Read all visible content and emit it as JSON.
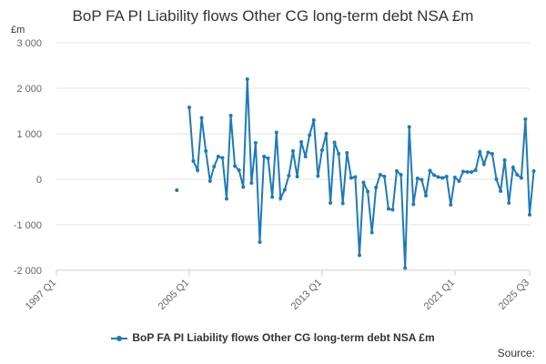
{
  "header": {
    "title": "BoP FA PI Liability flows Other CG long-term debt NSA £m"
  },
  "footer": {
    "source": "Source:"
  },
  "chart_data": {
    "type": "line",
    "title": "BoP FA PI Liability flows Other CG long-term debt NSA £m",
    "ylabel": "£m",
    "xlabel": "",
    "ylim": [
      -2000,
      3000
    ],
    "yticks": [
      3000,
      2000,
      1000,
      0,
      -1000,
      -2000
    ],
    "ytick_labels": [
      "3 000",
      "2 000",
      "1 000",
      "0",
      "-1 000",
      "-2 000"
    ],
    "xlim": [
      "1997 Q1",
      "2025 Q3"
    ],
    "xtick_labels": [
      "1997 Q1",
      "2005 Q1",
      "2013 Q1",
      "2021 Q1",
      "2025 Q3"
    ],
    "grid": "horizontal",
    "legend_position": "bottom",
    "color": "#1f7ab8",
    "series": [
      {
        "name": "BoP FA PI Liability flows Other CG long-term debt NSA £m",
        "start": "2004 Q2",
        "values": [
          -240,
          null,
          null,
          1580,
          400,
          200,
          1350,
          620,
          -40,
          280,
          500,
          470,
          -430,
          1400,
          290,
          200,
          -170,
          2200,
          -80,
          800,
          -1380,
          500,
          460,
          -390,
          1030,
          -420,
          -230,
          80,
          620,
          60,
          820,
          500,
          970,
          1300,
          70,
          640,
          1000,
          -520,
          810,
          560,
          -530,
          580,
          30,
          50,
          -1670,
          -70,
          -270,
          -1170,
          -180,
          100,
          60,
          -650,
          -670,
          180,
          100,
          -1950,
          1150,
          -550,
          20,
          -10,
          -360,
          190,
          90,
          50,
          30,
          60,
          -560,
          40,
          -40,
          170,
          160,
          160,
          200,
          600,
          330,
          590,
          560,
          0,
          -260,
          420,
          -520,
          260,
          100,
          30,
          1320,
          -780,
          180
        ]
      }
    ]
  }
}
